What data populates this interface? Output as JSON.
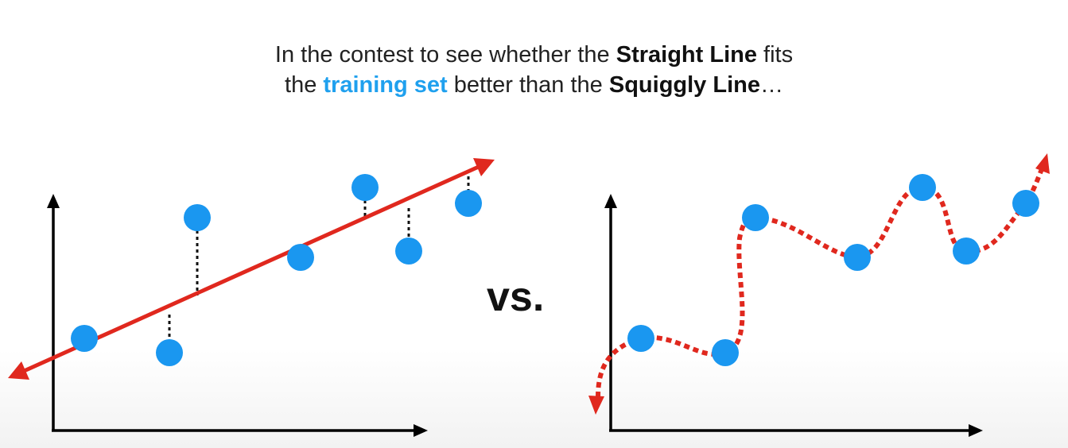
{
  "caption": {
    "line1_a": "In the contest to see whether the ",
    "line1_b": "Straight Line",
    "line1_c": " fits",
    "line2_a": "the ",
    "line2_b": "training set",
    "line2_c": " better than the ",
    "line2_d": "Squiggly Line",
    "line2_e": "…"
  },
  "vs_label": "vs.",
  "colors": {
    "point": "#1a97f0",
    "fit_line": "#e0281e",
    "axis": "#000000",
    "highlight_text": "#1fa0ee"
  }
}
